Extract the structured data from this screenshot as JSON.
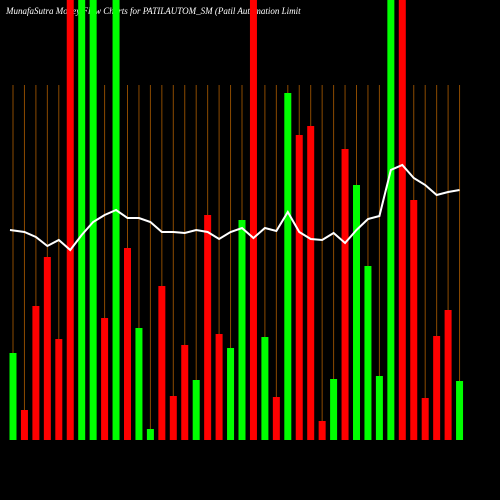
{
  "chart_data": {
    "type": "bar",
    "title": "MunafaSutra  Money Flow  Charts for PATILAUTOM_SM  (Patil Automation  Limit",
    "ylim": [
      0,
      440
    ],
    "colors": {
      "up": "#00ff00",
      "down": "#ff0000",
      "grid": "#8b4a00",
      "line": "#ffffff"
    },
    "series": [
      {
        "name": "flow",
        "directions": [
          "up",
          "down",
          "down",
          "down",
          "down",
          "down",
          "up",
          "up",
          "down",
          "up",
          "down",
          "up",
          "up",
          "down",
          "down",
          "down",
          "up",
          "down",
          "down",
          "up",
          "up",
          "down",
          "up",
          "down",
          "up",
          "down",
          "down",
          "down",
          "up",
          "down",
          "up",
          "up",
          "up",
          "up",
          "down",
          "down",
          "down",
          "down",
          "down",
          "up"
        ],
        "values": [
          87,
          30,
          134,
          183,
          101,
          440,
          440,
          440,
          122,
          440,
          192,
          112,
          11,
          154,
          44,
          95,
          60,
          225,
          106,
          92,
          220,
          440,
          103,
          43,
          347,
          305,
          314,
          19,
          61,
          291,
          255,
          174,
          64,
          440,
          440,
          240,
          42,
          104,
          130,
          59
        ]
      },
      {
        "name": "average",
        "values": [
          210,
          208,
          203,
          194,
          200,
          190,
          205,
          218,
          225,
          230,
          222,
          222,
          218,
          208,
          208,
          207,
          210,
          208,
          201,
          208,
          212,
          202,
          212,
          209,
          228,
          208,
          201,
          200,
          207,
          197,
          210,
          221,
          224,
          270,
          275,
          262,
          255,
          245,
          248,
          250
        ]
      }
    ]
  }
}
